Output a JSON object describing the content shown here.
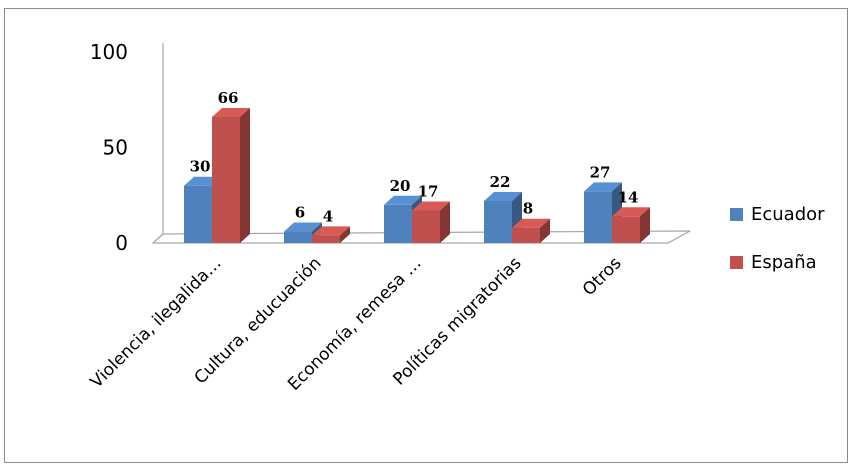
{
  "chart_data": {
    "type": "bar",
    "title": "",
    "xlabel": "",
    "ylabel": "",
    "ylim": [
      0,
      100
    ],
    "yticks": [
      0,
      50,
      100
    ],
    "grid": false,
    "legend_position": "right",
    "categories": [
      "Violencia, ilegalida…",
      "Cultura, educuación",
      "Economía, remesa …",
      "Políticas migratorias",
      "Otros"
    ],
    "series": [
      {
        "name": "Ecuador",
        "color": "#4f81bd",
        "values": [
          30,
          6,
          20,
          22,
          27
        ]
      },
      {
        "name": "España",
        "color": "#c0504d",
        "values": [
          66,
          4,
          17,
          8,
          14
        ]
      }
    ]
  }
}
